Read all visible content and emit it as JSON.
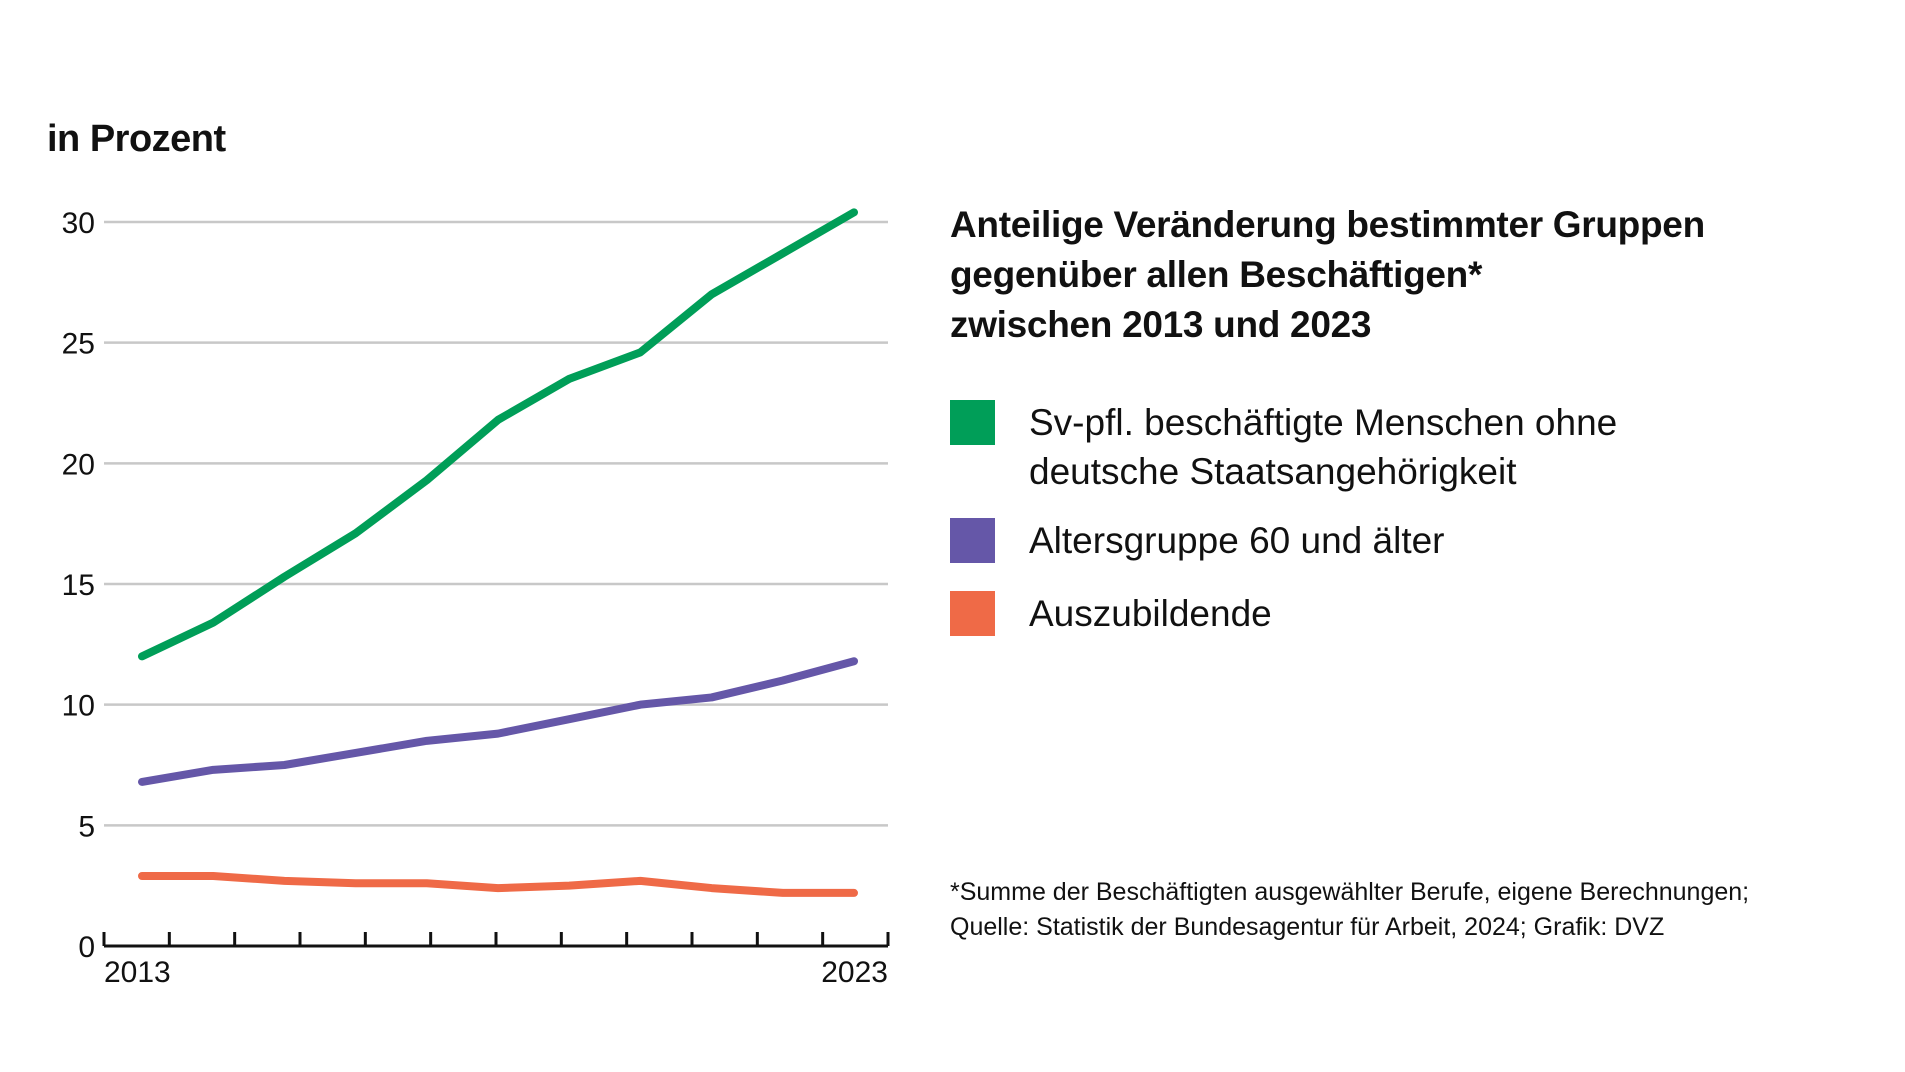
{
  "unit_label": "in Prozent",
  "title_lines": [
    "Anteilige Veränderung bestimmter Gruppen",
    "gegenüber allen Beschäftigen*",
    "zwischen 2013 und 2023"
  ],
  "legend": [
    {
      "label_lines": [
        "Sv-pfl. beschäftigte Menschen ohne",
        "deutsche Staatsangehörigkeit"
      ],
      "color": "#009e58"
    },
    {
      "label_lines": [
        "Altersgruppe 60 und älter"
      ],
      "color": "#6557a8"
    },
    {
      "label_lines": [
        "Auszubildende"
      ],
      "color": "#ef6a47"
    }
  ],
  "footnote_lines": [
    "*Summe der Beschäftigten ausgewählter Berufe, eigene Berechnungen;",
    "Quelle: Statistik der Bundesagentur für Arbeit, 2024; Grafik: DVZ"
  ],
  "chart_data": {
    "type": "line",
    "title": "Anteilige Veränderung bestimmter Gruppen gegenüber allen Beschäftigen* zwischen 2013 und 2023",
    "ylabel": "in Prozent",
    "xlabel": "",
    "x": [
      2013,
      2014,
      2015,
      2016,
      2017,
      2018,
      2019,
      2020,
      2021,
      2022,
      2023
    ],
    "x_tick_labels": [
      "2013",
      "2023"
    ],
    "y_ticks": [
      0,
      5,
      10,
      15,
      20,
      25,
      30
    ],
    "ylim": [
      0,
      30
    ],
    "grid": true,
    "legend_position": "right",
    "series": [
      {
        "name": "Sv-pfl. beschäftigte Menschen ohne deutsche Staatsangehörigkeit",
        "color": "#009e58",
        "values": [
          12.0,
          13.4,
          15.3,
          17.1,
          19.3,
          21.8,
          23.5,
          24.6,
          27.0,
          28.7,
          30.4
        ]
      },
      {
        "name": "Altersgruppe 60 und älter",
        "color": "#6557a8",
        "values": [
          6.8,
          7.3,
          7.5,
          8.0,
          8.5,
          8.8,
          9.4,
          10.0,
          10.3,
          11.0,
          11.8
        ]
      },
      {
        "name": "Auszubildende",
        "color": "#ef6a47",
        "values": [
          2.9,
          2.9,
          2.7,
          2.6,
          2.6,
          2.4,
          2.5,
          2.7,
          2.4,
          2.2,
          2.2
        ]
      }
    ]
  }
}
